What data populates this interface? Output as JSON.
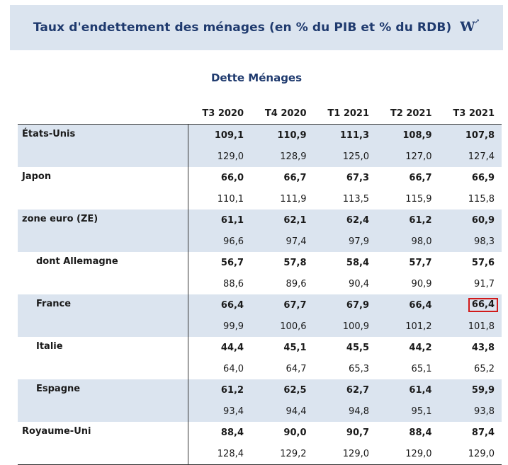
{
  "header": {
    "title": "Taux d'endettement des ménages (en % du PIB et % du RDB)",
    "logo": "W"
  },
  "subtitle": "Dette Ménages",
  "columns": [
    "T3 2020",
    "T4 2020",
    "T1 2021",
    "T2 2021",
    "T3 2021"
  ],
  "rows": [
    {
      "country": "États-Unis",
      "pib": [
        "109,1",
        "110,9",
        "111,3",
        "108,9",
        "107,8"
      ],
      "rdb": [
        "129,0",
        "128,9",
        "125,0",
        "127,0",
        "127,4"
      ]
    },
    {
      "country": "Japon",
      "pib": [
        "66,0",
        "66,7",
        "67,3",
        "66,7",
        "66,9"
      ],
      "rdb": [
        "110,1",
        "111,9",
        "113,5",
        "115,9",
        "115,8"
      ]
    },
    {
      "country": "zone euro (ZE)",
      "pib": [
        "61,1",
        "62,1",
        "62,4",
        "61,2",
        "60,9"
      ],
      "rdb": [
        "96,6",
        "97,4",
        "97,9",
        "98,0",
        "98,3"
      ]
    },
    {
      "country": "dont Allemagne",
      "pib": [
        "56,7",
        "57,8",
        "58,4",
        "57,7",
        "57,6"
      ],
      "rdb": [
        "88,6",
        "89,6",
        "90,4",
        "90,9",
        "91,7"
      ]
    },
    {
      "country": "France",
      "pib": [
        "66,4",
        "67,7",
        "67,9",
        "66,4",
        "66,4"
      ],
      "rdb": [
        "99,9",
        "100,6",
        "100,9",
        "101,2",
        "101,8"
      ]
    },
    {
      "country": "Italie",
      "pib": [
        "44,4",
        "45,1",
        "45,5",
        "44,2",
        "43,8"
      ],
      "rdb": [
        "64,0",
        "64,7",
        "65,3",
        "65,1",
        "65,2"
      ]
    },
    {
      "country": "Espagne",
      "pib": [
        "61,2",
        "62,5",
        "62,7",
        "61,4",
        "59,9"
      ],
      "rdb": [
        "93,4",
        "94,4",
        "94,8",
        "95,1",
        "93,8"
      ]
    },
    {
      "country": "Royaume-Uni",
      "pib": [
        "88,4",
        "90,0",
        "90,7",
        "88,4",
        "87,4"
      ],
      "rdb": [
        "128,4",
        "129,2",
        "129,0",
        "129,0",
        "129,0"
      ]
    }
  ],
  "colors": {
    "shade": "#dbe4ef",
    "title": "#1f3a6e",
    "highlight": "#d11a1a"
  }
}
